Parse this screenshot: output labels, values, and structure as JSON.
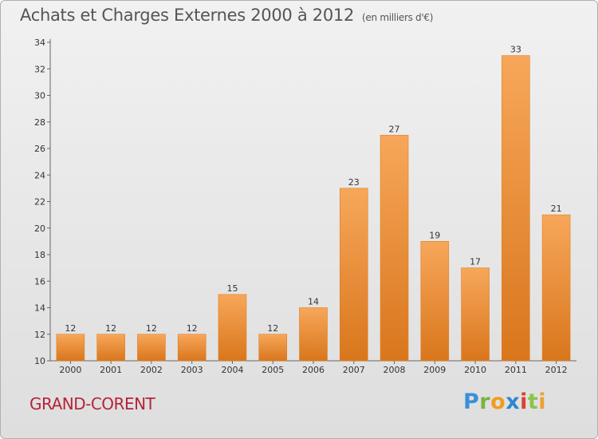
{
  "header": {
    "title": "Achats et Charges Externes 2000 à 2012",
    "unit": "(en milliers d'€)"
  },
  "footer": {
    "place": "GRAND-CORENT",
    "logo": [
      "P",
      "r",
      "o",
      "x",
      "i",
      "t",
      "i"
    ],
    "logo_colors": [
      "#3a8fd6",
      "#7cb342",
      "#f29b1d",
      "#2f86cf",
      "#d9412b",
      "#8bc34a",
      "#f0a030"
    ]
  },
  "chart_data": {
    "type": "bar",
    "title": "Achats et Charges Externes 2000 à 2012",
    "categories": [
      "2000",
      "2001",
      "2002",
      "2003",
      "2004",
      "2005",
      "2006",
      "2007",
      "2008",
      "2009",
      "2010",
      "2011",
      "2012"
    ],
    "values": [
      12,
      12,
      12,
      12,
      15,
      12,
      14,
      23,
      27,
      19,
      17,
      33,
      21
    ],
    "ylim": [
      10,
      34
    ],
    "yticks": [
      10,
      12,
      14,
      16,
      18,
      20,
      22,
      24,
      26,
      28,
      30,
      32,
      34
    ],
    "grid": false,
    "bar_color": "#e8862a"
  }
}
